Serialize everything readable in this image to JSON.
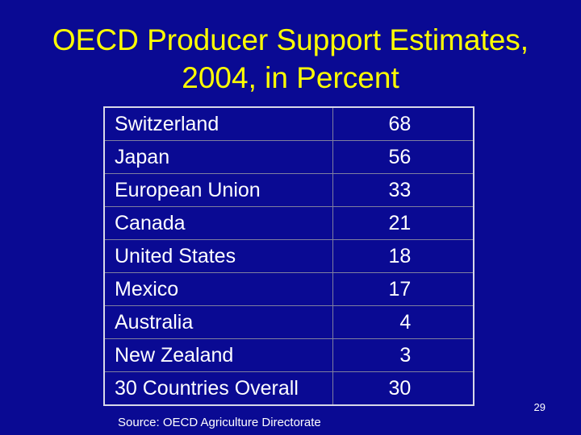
{
  "slide": {
    "title_line1": "OECD Producer Support Estimates,",
    "title_line2": "2004, in Percent",
    "page_number": "29",
    "source": "Source: OECD Agriculture Directorate"
  },
  "table": {
    "rows": [
      {
        "country": "Switzerland",
        "value": "68"
      },
      {
        "country": "Japan",
        "value": "56"
      },
      {
        "country": "European Union",
        "value": "33"
      },
      {
        "country": "Canada",
        "value": "21"
      },
      {
        "country": "United States",
        "value": "18"
      },
      {
        "country": "Mexico",
        "value": "17"
      },
      {
        "country": "Australia",
        "value": "4"
      },
      {
        "country": "New Zealand",
        "value": "3"
      },
      {
        "country": "30 Countries Overall",
        "value": "30"
      }
    ]
  },
  "colors": {
    "background": "#0a0a93",
    "title": "#ffff00",
    "text": "#ffffff"
  }
}
